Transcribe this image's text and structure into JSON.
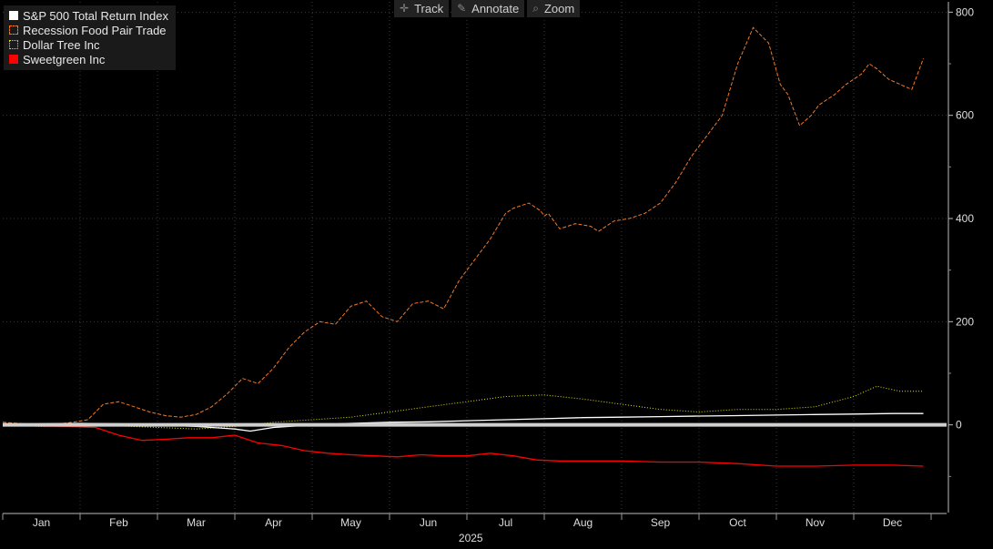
{
  "toolbar": {
    "track_label": "Track",
    "annotate_label": "Annotate",
    "zoom_label": "Zoom",
    "track_icon": "crosshair-icon",
    "annotate_icon": "pencil-icon",
    "zoom_icon": "magnifier-icon"
  },
  "legend": [
    {
      "label": "S&P 500 Total Return Index",
      "color": "#ffffff",
      "style": "solid"
    },
    {
      "label": "Recession Food Pair Trade",
      "color": "#f07a2a",
      "style": "dashed"
    },
    {
      "label": "Dollar Tree Inc",
      "color": "#e6e600",
      "style": "dotted"
    },
    {
      "label": "Sweetgreen Inc",
      "color": "#ff0000",
      "style": "solid"
    }
  ],
  "chart_data": {
    "type": "line",
    "xlabel": "2025",
    "x_ticks": [
      "Jan",
      "Feb",
      "Mar",
      "Apr",
      "May",
      "Jun",
      "Jul",
      "Aug",
      "Sep",
      "Oct",
      "Nov",
      "Dec"
    ],
    "y_ticks": [
      0,
      200,
      400,
      600,
      800
    ],
    "ylim": [
      -170,
      820
    ],
    "y_axis_side": "right",
    "grid": true,
    "legend_position": "top-left",
    "x_unit": "months since Jan 1, 2025",
    "series": [
      {
        "name": "Recession Food Pair Trade",
        "color": "#f07a2a",
        "style": "dashed",
        "x": [
          0,
          0.3,
          0.6,
          0.9,
          1.1,
          1.3,
          1.5,
          1.7,
          1.9,
          2.1,
          2.3,
          2.5,
          2.7,
          2.9,
          3.1,
          3.3,
          3.5,
          3.7,
          3.9,
          4.1,
          4.3,
          4.5,
          4.7,
          4.9,
          5.1,
          5.3,
          5.5,
          5.7,
          5.9,
          6.1,
          6.3,
          6.5,
          6.6,
          6.8,
          6.95,
          7.0,
          7.05,
          7.2,
          7.4,
          7.6,
          7.7,
          7.9,
          8.1,
          8.3,
          8.5,
          8.7,
          8.9,
          9.1,
          9.3,
          9.5,
          9.7,
          9.9,
          10.05,
          10.15,
          10.3,
          10.45,
          10.55,
          10.75,
          10.9,
          11.1,
          11.2,
          11.3,
          11.45,
          11.6,
          11.75,
          11.9
        ],
        "values": [
          5,
          2,
          0,
          5,
          10,
          40,
          45,
          35,
          25,
          18,
          15,
          20,
          35,
          60,
          90,
          80,
          110,
          150,
          180,
          200,
          195,
          230,
          240,
          210,
          200,
          235,
          240,
          225,
          280,
          320,
          360,
          410,
          420,
          430,
          415,
          405,
          410,
          380,
          390,
          385,
          375,
          395,
          400,
          410,
          430,
          470,
          520,
          560,
          600,
          700,
          770,
          740,
          660,
          640,
          580,
          600,
          620,
          640,
          660,
          680,
          700,
          690,
          670,
          660,
          650,
          710
        ]
      },
      {
        "name": "Dollar Tree Inc",
        "color": "#e6e600",
        "style": "dotted",
        "x": [
          0,
          0.5,
          1,
          1.5,
          2,
          2.5,
          3,
          3.5,
          4,
          4.5,
          5,
          5.5,
          6,
          6.5,
          7,
          7.5,
          8,
          8.5,
          9,
          9.5,
          10,
          10.5,
          11,
          11.3,
          11.6,
          11.9
        ],
        "values": [
          0,
          -3,
          0,
          -2,
          -5,
          -8,
          -3,
          5,
          10,
          15,
          25,
          35,
          45,
          55,
          58,
          50,
          40,
          30,
          25,
          30,
          30,
          35,
          55,
          75,
          65,
          65
        ]
      },
      {
        "name": "S&P 500 Total Return Index",
        "color": "#ffffff",
        "style": "solid",
        "x": [
          0,
          0.5,
          1,
          1.5,
          2,
          2.5,
          3,
          3.2,
          3.5,
          4,
          4.5,
          5,
          5.5,
          6,
          6.5,
          7,
          7.5,
          8,
          8.5,
          9,
          9.5,
          10,
          10.5,
          11,
          11.5,
          11.9
        ],
        "values": [
          0,
          2,
          3,
          2,
          0,
          -3,
          -8,
          -12,
          -5,
          0,
          3,
          5,
          6,
          8,
          10,
          12,
          14,
          15,
          16,
          17,
          18,
          19,
          20,
          21,
          22,
          22
        ]
      },
      {
        "name": "Sweetgreen Inc",
        "color": "#ff0000",
        "style": "solid",
        "x": [
          0,
          0.4,
          0.8,
          1.2,
          1.5,
          1.8,
          2.1,
          2.4,
          2.7,
          3.0,
          3.3,
          3.6,
          3.9,
          4.2,
          4.5,
          4.8,
          5.1,
          5.4,
          5.7,
          6.0,
          6.3,
          6.6,
          6.9,
          7.2,
          7.5,
          8.0,
          8.5,
          9.0,
          9.5,
          10.0,
          10.5,
          11.0,
          11.5,
          11.9
        ],
        "values": [
          0,
          -2,
          -3,
          -5,
          -20,
          -30,
          -28,
          -25,
          -25,
          -20,
          -35,
          -40,
          -50,
          -55,
          -58,
          -60,
          -62,
          -58,
          -60,
          -60,
          -55,
          -60,
          -68,
          -70,
          -70,
          -70,
          -72,
          -72,
          -75,
          -80,
          -80,
          -78,
          -78,
          -80
        ]
      }
    ]
  }
}
